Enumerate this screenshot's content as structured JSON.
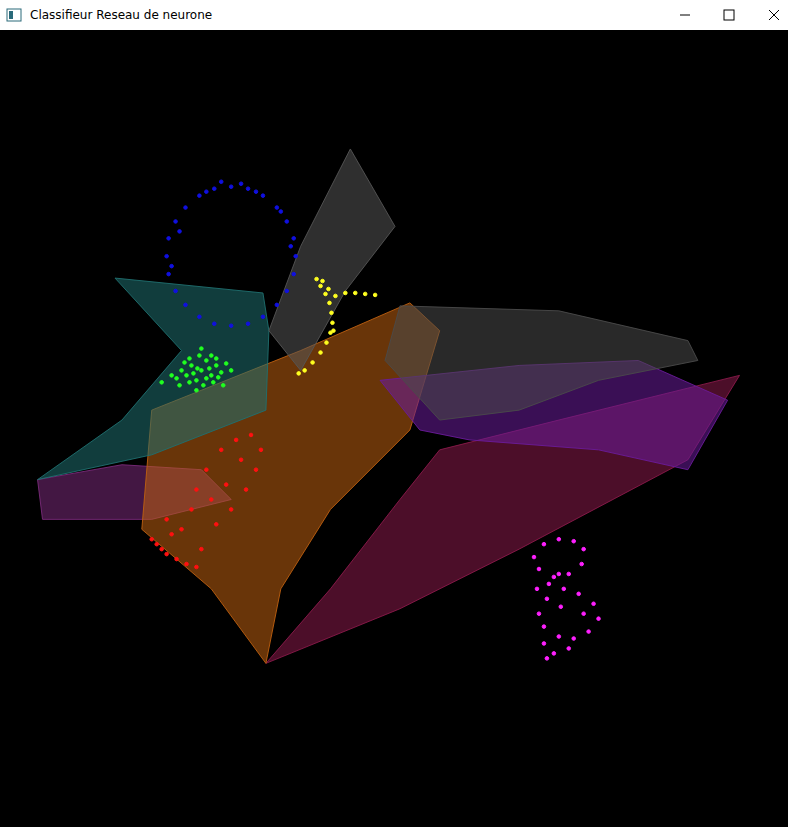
{
  "window": {
    "title": "Classifieur Reseau de neurone"
  },
  "chart_data": {
    "type": "scatter",
    "xlim": [
      0,
      788
    ],
    "ylim": [
      797,
      0
    ],
    "grid": false,
    "tick_labels": false,
    "series": [
      {
        "type": "area",
        "color": "#555555",
        "values": [
          [
            350,
            117
          ],
          [
            395,
            195
          ],
          [
            345,
            260
          ],
          [
            300,
            340
          ],
          [
            268,
            300
          ],
          [
            300,
            215
          ]
        ]
      },
      {
        "type": "area",
        "color": "#4a4a4a",
        "values": [
          [
            400,
            275
          ],
          [
            560,
            280
          ],
          [
            690,
            310
          ],
          [
            700,
            330
          ],
          [
            600,
            350
          ],
          [
            520,
            380
          ],
          [
            440,
            390
          ],
          [
            385,
            330
          ]
        ]
      },
      {
        "type": "area",
        "color": "#6a1b9a",
        "values": [
          [
            380,
            350
          ],
          [
            520,
            335
          ],
          [
            640,
            330
          ],
          [
            730,
            370
          ],
          [
            690,
            440
          ],
          [
            600,
            420
          ],
          [
            470,
            410
          ],
          [
            420,
            400
          ]
        ]
      },
      {
        "type": "area",
        "color": "#1f7070",
        "values": [
          [
            113,
            247
          ],
          [
            262,
            262
          ],
          [
            268,
            300
          ],
          [
            265,
            380
          ],
          [
            150,
            425
          ],
          [
            35,
            450
          ],
          [
            120,
            390
          ],
          [
            180,
            320
          ]
        ]
      },
      {
        "type": "area",
        "color": "#c06010",
        "values": [
          [
            150,
            380
          ],
          [
            300,
            320
          ],
          [
            410,
            272
          ],
          [
            440,
            300
          ],
          [
            410,
            400
          ],
          [
            330,
            480
          ],
          [
            280,
            560
          ],
          [
            265,
            635
          ],
          [
            210,
            560
          ],
          [
            140,
            500
          ]
        ]
      },
      {
        "type": "area",
        "color": "#8b1a4a",
        "values": [
          [
            265,
            635
          ],
          [
            330,
            560
          ],
          [
            400,
            470
          ],
          [
            440,
            420
          ],
          [
            560,
            390
          ],
          [
            742,
            345
          ],
          [
            690,
            430
          ],
          [
            520,
            520
          ],
          [
            400,
            580
          ]
        ]
      },
      {
        "type": "area",
        "color": "#7a2a7a",
        "values": [
          [
            35,
            450
          ],
          [
            120,
            435
          ],
          [
            200,
            440
          ],
          [
            230,
            470
          ],
          [
            150,
            490
          ],
          [
            40,
            490
          ]
        ]
      },
      {
        "type": "scatter",
        "color": "#1010e0",
        "values": [
          [
            295,
            225
          ],
          [
            293,
            207
          ],
          [
            286,
            190
          ],
          [
            276,
            176
          ],
          [
            262,
            164
          ],
          [
            247,
            157
          ],
          [
            230,
            155
          ],
          [
            213,
            157
          ],
          [
            198,
            164
          ],
          [
            184,
            176
          ],
          [
            174,
            190
          ],
          [
            167,
            207
          ],
          [
            165,
            225
          ],
          [
            167,
            243
          ],
          [
            174,
            260
          ],
          [
            184,
            274
          ],
          [
            198,
            286
          ],
          [
            213,
            293
          ],
          [
            230,
            295
          ],
          [
            247,
            293
          ],
          [
            262,
            286
          ],
          [
            276,
            274
          ],
          [
            286,
            260
          ],
          [
            293,
            243
          ],
          [
            240,
            152
          ],
          [
            205,
            160
          ],
          [
            178,
            200
          ],
          [
            290,
            215
          ],
          [
            170,
            235
          ],
          [
            280,
            180
          ],
          [
            220,
            150
          ],
          [
            255,
            160
          ]
        ]
      },
      {
        "type": "scatter",
        "color": "#ffff20",
        "values": [
          [
            316,
            248
          ],
          [
            320,
            255
          ],
          [
            325,
            263
          ],
          [
            329,
            272
          ],
          [
            331,
            282
          ],
          [
            332,
            292
          ],
          [
            330,
            302
          ],
          [
            326,
            312
          ],
          [
            320,
            322
          ],
          [
            312,
            332
          ],
          [
            304,
            340
          ],
          [
            298,
            343
          ],
          [
            335,
            265
          ],
          [
            345,
            262
          ],
          [
            355,
            262
          ],
          [
            365,
            263
          ],
          [
            375,
            264
          ],
          [
            322,
            250
          ],
          [
            328,
            258
          ],
          [
            333,
            300
          ]
        ]
      },
      {
        "type": "scatter",
        "color": "#20ff20",
        "values": [
          [
            200,
            340
          ],
          [
            190,
            335
          ],
          [
            210,
            345
          ],
          [
            185,
            345
          ],
          [
            215,
            335
          ],
          [
            195,
            350
          ],
          [
            205,
            330
          ],
          [
            180,
            340
          ],
          [
            220,
            342
          ],
          [
            198,
            325
          ],
          [
            202,
            355
          ],
          [
            188,
            328
          ],
          [
            212,
            352
          ],
          [
            175,
            348
          ],
          [
            225,
            333
          ],
          [
            192,
            343
          ],
          [
            208,
            338
          ],
          [
            183,
            332
          ],
          [
            217,
            347
          ],
          [
            200,
            318
          ],
          [
            170,
            345
          ],
          [
            230,
            340
          ],
          [
            195,
            360
          ],
          [
            210,
            325
          ],
          [
            178,
            355
          ],
          [
            222,
            355
          ],
          [
            188,
            352
          ],
          [
            205,
            348
          ],
          [
            215,
            328
          ],
          [
            160,
            352
          ],
          [
            196,
            338
          ]
        ]
      },
      {
        "type": "scatter",
        "color": "#ff1010",
        "values": [
          [
            155,
            515
          ],
          [
            165,
            525
          ],
          [
            175,
            530
          ],
          [
            185,
            535
          ],
          [
            195,
            538
          ],
          [
            160,
            520
          ],
          [
            150,
            510
          ],
          [
            170,
            505
          ],
          [
            200,
            520
          ],
          [
            215,
            495
          ],
          [
            230,
            480
          ],
          [
            245,
            460
          ],
          [
            255,
            440
          ],
          [
            260,
            420
          ],
          [
            250,
            405
          ],
          [
            235,
            410
          ],
          [
            220,
            420
          ],
          [
            205,
            440
          ],
          [
            195,
            460
          ],
          [
            190,
            480
          ],
          [
            210,
            470
          ],
          [
            225,
            455
          ],
          [
            240,
            430
          ],
          [
            180,
            500
          ],
          [
            165,
            490
          ]
        ]
      },
      {
        "type": "scatter",
        "color": "#ff20ff",
        "values": [
          [
            545,
            515
          ],
          [
            560,
            510
          ],
          [
            575,
            512
          ],
          [
            585,
            520
          ],
          [
            583,
            535
          ],
          [
            570,
            545
          ],
          [
            555,
            548
          ],
          [
            540,
            540
          ],
          [
            535,
            528
          ],
          [
            550,
            555
          ],
          [
            565,
            560
          ],
          [
            580,
            565
          ],
          [
            595,
            575
          ],
          [
            600,
            590
          ],
          [
            590,
            603
          ],
          [
            575,
            610
          ],
          [
            560,
            608
          ],
          [
            545,
            598
          ],
          [
            540,
            585
          ],
          [
            548,
            570
          ],
          [
            562,
            578
          ],
          [
            585,
            585
          ],
          [
            570,
            620
          ],
          [
            555,
            625
          ],
          [
            545,
            615
          ],
          [
            548,
            630
          ],
          [
            560,
            545
          ],
          [
            538,
            560
          ]
        ]
      }
    ]
  }
}
